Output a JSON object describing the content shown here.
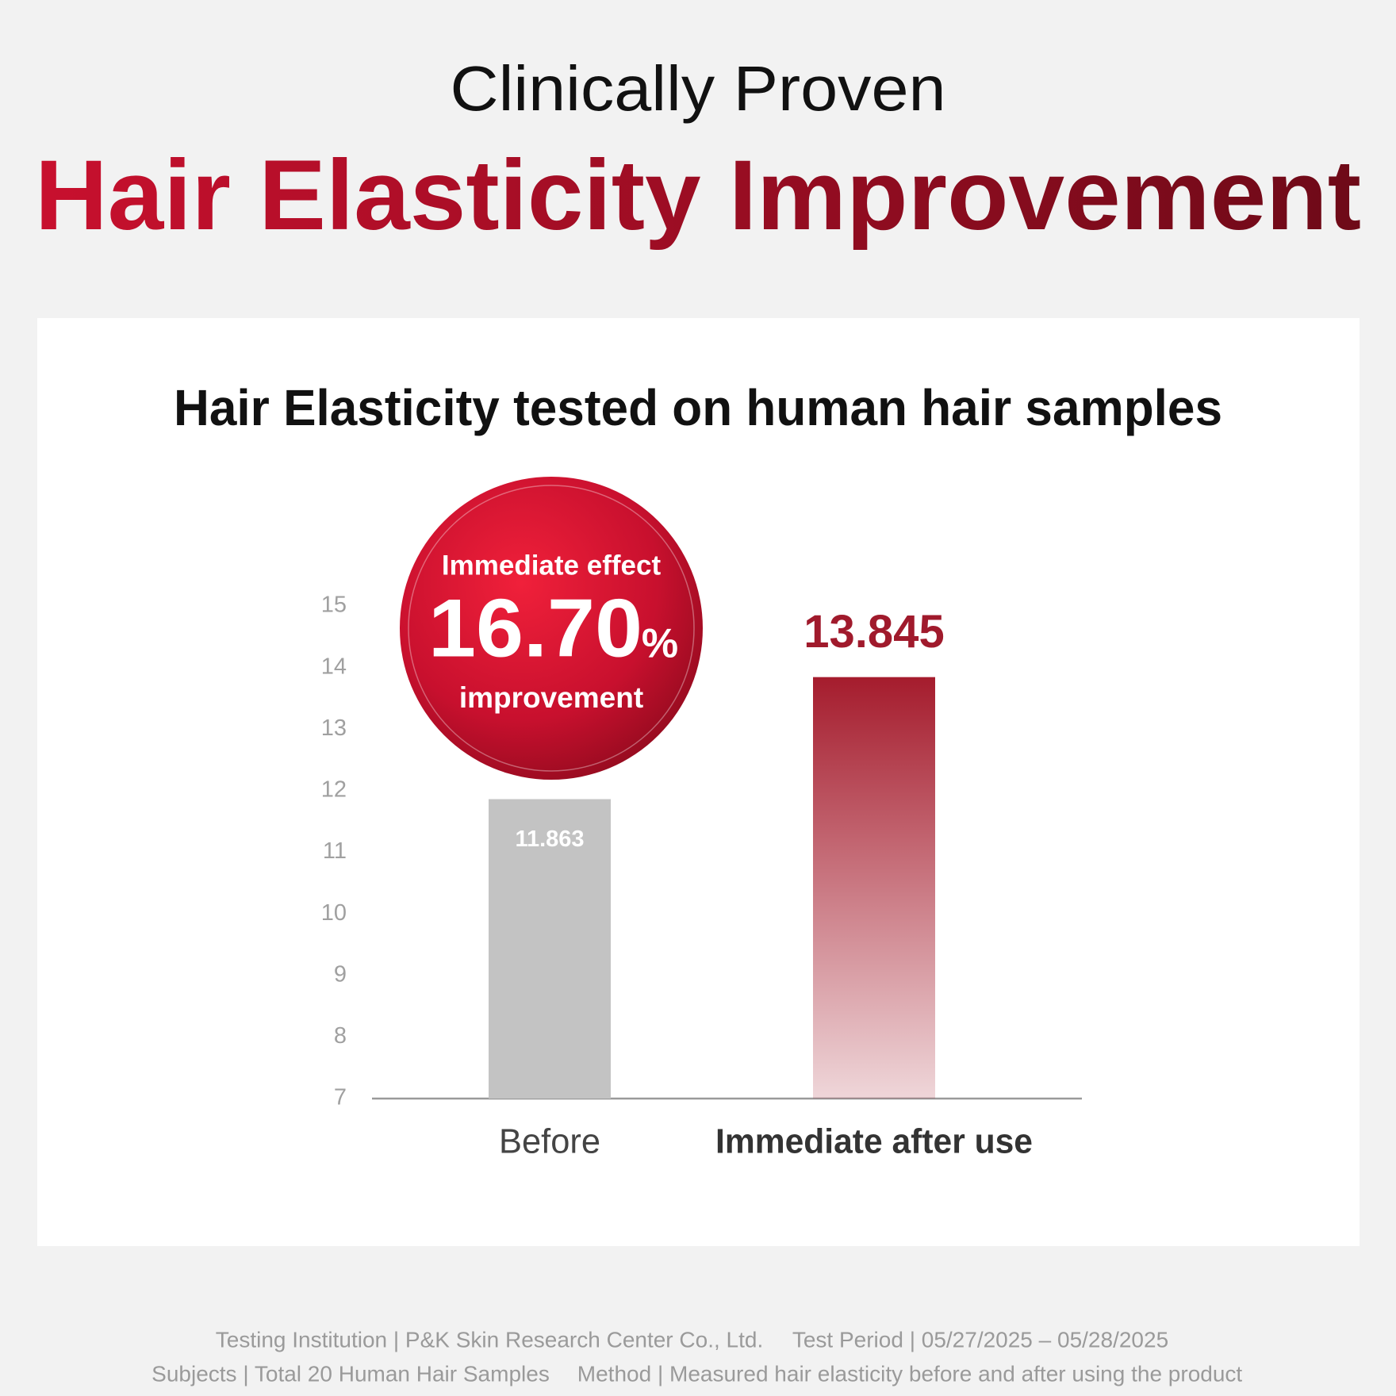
{
  "header": {
    "kicker": "Clinically Proven",
    "title": "Hair Elasticity Improvement"
  },
  "chart_data": {
    "type": "bar",
    "title": "Hair Elasticity tested on human hair samples",
    "categories": [
      "Before",
      "Immediate after use"
    ],
    "values": [
      11.863,
      13.845
    ],
    "colors": [
      "#c3c3c3",
      "#a51c2d"
    ],
    "ylim": [
      7,
      15
    ],
    "yticks": [
      7,
      8,
      9,
      10,
      11,
      12,
      13,
      14,
      15
    ],
    "grid": false,
    "badge": {
      "top": "Immediate effect",
      "value": "16.70",
      "unit": "%",
      "bottom": "improvement"
    }
  },
  "footer": {
    "institution": "Testing Institution | P&K Skin Research Center Co., Ltd.",
    "period": "Test Period | 05/27/2025 – 05/28/2025",
    "subjects": "Subjects | Total 20 Human Hair Samples",
    "method": "Method | Measured hair elasticity before and after using the product"
  }
}
